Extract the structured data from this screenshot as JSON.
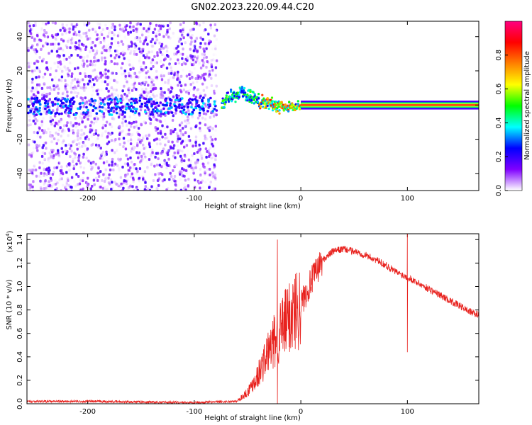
{
  "figure": {
    "title": "GN02.2023.220.09.44.C20"
  },
  "chart_data": [
    {
      "type": "heatmap",
      "xlabel": "Height of straight line (km)",
      "ylabel": "Frequency (Hz)",
      "xlim": [
        -257,
        167
      ],
      "ylim": [
        -50,
        49
      ],
      "x_ticks": [
        -200,
        -100,
        0,
        100
      ],
      "y_ticks": [
        -40,
        -20,
        0,
        20,
        40
      ],
      "colorbar": {
        "label": "Normalized spectral amplitude",
        "range": [
          0.0,
          1.0
        ],
        "ticks": [
          "0.0",
          "0.2",
          "0.4",
          "0.6",
          "0.8"
        ],
        "colormap": "rainbow",
        "colors": [
          "#ffffff",
          "#8000ff",
          "#0000ff",
          "#00ffff",
          "#00ff00",
          "#ffff00",
          "#ff8000",
          "#ff0000",
          "#ff0080"
        ]
      },
      "features": {
        "noise_region_x": [
          -257,
          -80
        ],
        "carrier_frequency_hz": 0,
        "signal_track": [
          {
            "x": -75,
            "f": 2
          },
          {
            "x": -65,
            "f": 6
          },
          {
            "x": -55,
            "f": 8
          },
          {
            "x": -45,
            "f": 4
          },
          {
            "x": -35,
            "f": 2
          },
          {
            "x": -20,
            "f": 0
          },
          {
            "x": 0,
            "f": 0
          },
          {
            "x": 167,
            "f": 0
          }
        ]
      }
    },
    {
      "type": "line",
      "xlabel": "Height of straight line (km)",
      "ylabel": "SNR (10 * v/v)",
      "scale_note": "(x10",
      "scale_exp": "4",
      "scale_close": ")",
      "xlim": [
        -257,
        167
      ],
      "ylim": [
        0,
        1.45
      ],
      "x_ticks": [
        -200,
        -100,
        0,
        100
      ],
      "y_ticks": [
        "0.0",
        "0.2",
        "0.4",
        "0.6",
        "0.8",
        "1.0",
        "1.2",
        "1.4"
      ],
      "color": "#e8211d",
      "series": [
        {
          "x": [
            -257,
            -200,
            -100,
            -60,
            -50,
            -40,
            -30,
            -20,
            -10,
            0,
            10,
            20,
            30,
            40,
            50,
            60,
            70,
            80,
            90,
            100,
            110,
            120,
            130,
            140,
            150,
            160,
            167
          ],
          "values": [
            0.02,
            0.02,
            0.01,
            0.02,
            0.1,
            0.25,
            0.45,
            0.6,
            0.75,
            0.85,
            1.05,
            1.22,
            1.3,
            1.32,
            1.3,
            1.27,
            1.23,
            1.18,
            1.12,
            1.08,
            1.03,
            0.98,
            0.93,
            0.88,
            0.83,
            0.78,
            0.76
          ]
        }
      ],
      "spikes": [
        {
          "x": -22,
          "values": [
            0.0,
            1.4
          ]
        },
        {
          "x": 100,
          "values": [
            0.44,
            1.45
          ]
        }
      ]
    }
  ]
}
